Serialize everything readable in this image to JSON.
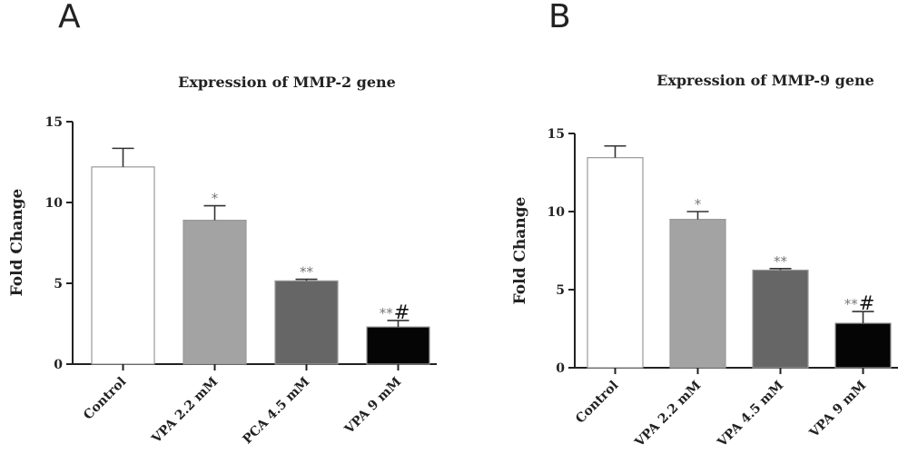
{
  "chart_data": [
    {
      "panel": "A",
      "type": "bar",
      "title": "Expression of MMP-2 gene",
      "ylabel": "Fold Change",
      "ylim": [
        0,
        15
      ],
      "yticks": [
        0,
        5,
        10,
        15
      ],
      "categories": [
        "Control",
        "VPA 2.2 mM",
        "PCA 4.5 mM",
        "VPA 9 mM"
      ],
      "values": [
        12.2,
        8.9,
        5.15,
        2.3
      ],
      "errors": [
        1.15,
        0.9,
        0.1,
        0.4
      ],
      "significance": [
        "",
        "*",
        "**",
        "**"
      ],
      "significance_hash": [
        "",
        "",
        "",
        "#"
      ],
      "colors": [
        "#ffffff",
        "#a3a3a3",
        "#666666",
        "#050505"
      ],
      "grid": false
    },
    {
      "panel": "B",
      "type": "bar",
      "title": "Expression of MMP-9 gene",
      "ylabel": "Fold Change",
      "ylim": [
        0,
        15
      ],
      "yticks": [
        0,
        5,
        10,
        15
      ],
      "categories": [
        "Control",
        "VPA 2.2 mM",
        "VPA 4.5 mM",
        "VPA 9 mM"
      ],
      "values": [
        13.45,
        9.5,
        6.25,
        2.85
      ],
      "errors": [
        0.75,
        0.5,
        0.1,
        0.75
      ],
      "significance": [
        "",
        "*",
        "**",
        "**"
      ],
      "significance_hash": [
        "",
        "",
        "",
        "#"
      ],
      "colors": [
        "#ffffff",
        "#a3a3a3",
        "#666666",
        "#050505"
      ],
      "grid": false
    }
  ]
}
